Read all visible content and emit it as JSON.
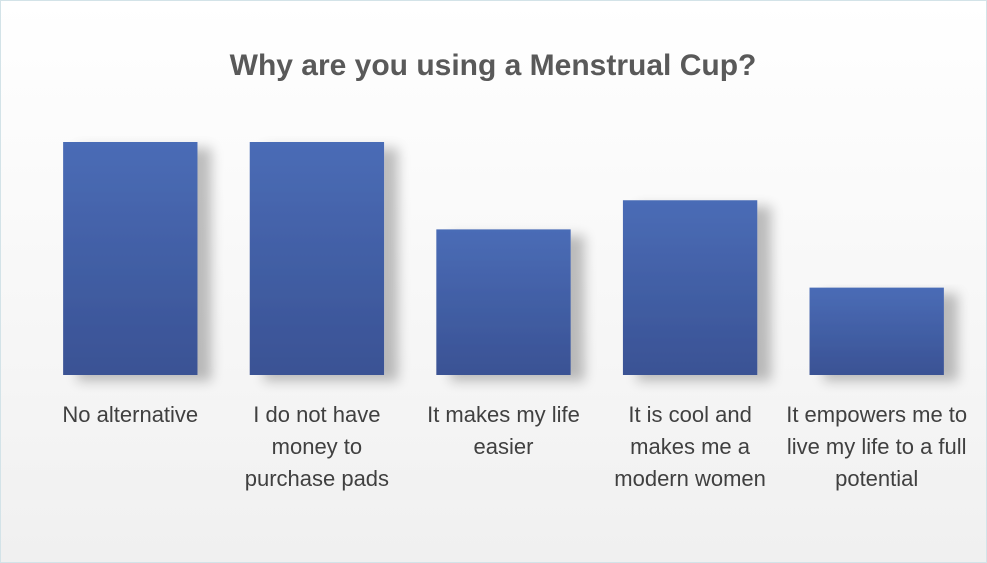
{
  "chart_data": {
    "type": "bar",
    "title": "Why are you using a Menstrual Cup?",
    "categories": [
      "No alternative",
      "I do not have money to purchase pads",
      "It makes my life easier",
      "It is cool and makes me a modern women",
      "It empowers me to live my life to a full potential"
    ],
    "values": [
      8,
      8,
      5,
      6,
      3
    ],
    "color": "#4668b0",
    "ylim": [
      0,
      8
    ],
    "grid": false
  }
}
